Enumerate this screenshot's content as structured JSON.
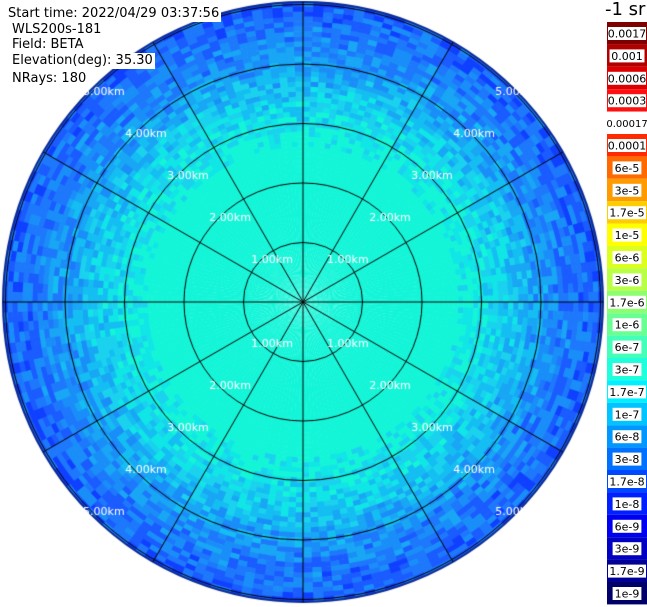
{
  "header": {
    "start_time": "Start time: 2022/04/29 03:37:56",
    "instrument": "WLS200s-181",
    "field": "Field: BETA",
    "elevation": "Elevation(deg): 35.30",
    "nrays": "NRays: 180"
  },
  "units_label": "-1 sr",
  "range_rings": {
    "labels": [
      "1.00km",
      "2.00km",
      "3.00km",
      "4.00km",
      "5.00km"
    ],
    "values_km": [
      1,
      2,
      3,
      4,
      5
    ],
    "max_range_km": 5.0
  },
  "colorbar": {
    "labels": [
      "0.0017",
      "0.001",
      "0.0006",
      "0.0003",
      "0.00017",
      "0.0001",
      "6e-5",
      "3e-5",
      "1.7e-5",
      "1e-5",
      "6e-6",
      "3e-6",
      "1.7e-6",
      "1e-6",
      "6e-7",
      "3e-7",
      "1.7e-7",
      "1e-7",
      "6e-8",
      "3e-8",
      "1.7e-8",
      "1e-8",
      "6e-9",
      "3e-9",
      "1.7e-9",
      "1e-9"
    ],
    "colors": [
      "#7f0000",
      "#b00000",
      "#de0000",
      "#ff1010",
      "#ffffff",
      "#ff2a00",
      "#ff6a00",
      "#ff9a00",
      "#ffcc00",
      "#ffff00",
      "#ddff20",
      "#b8ff46",
      "#8cff70",
      "#6aff92",
      "#44ffb8",
      "#20ffdc",
      "#00f0ff",
      "#00c4ff",
      "#0098ff",
      "#0070ff",
      "#0048ff",
      "#0020ff",
      "#0000f0",
      "#0000c4",
      "#000096",
      "#000068"
    ]
  },
  "chart_data": {
    "type": "heatmap",
    "projection": "polar PPI",
    "field": "BETA",
    "units": "-1 sr",
    "rays": 180,
    "range_rings_km": [
      1,
      2,
      3,
      4,
      5
    ],
    "spoke_azimuths_deg": [
      0,
      30,
      60,
      90,
      120,
      150,
      180,
      210,
      240,
      270,
      300,
      330
    ],
    "radial_profile": [
      {
        "range_km": 0.0,
        "class": "1e-7 to 1.7e-7"
      },
      {
        "range_km": 2.5,
        "class": "1e-7 to 1.7e-7"
      },
      {
        "range_km": 3.2,
        "class": "6e-8 to 1e-7"
      },
      {
        "range_km": 4.0,
        "class": "3e-8 to 1.7e-8"
      },
      {
        "range_km": 5.0,
        "class": "1.7e-8 to 1e-8"
      }
    ]
  }
}
